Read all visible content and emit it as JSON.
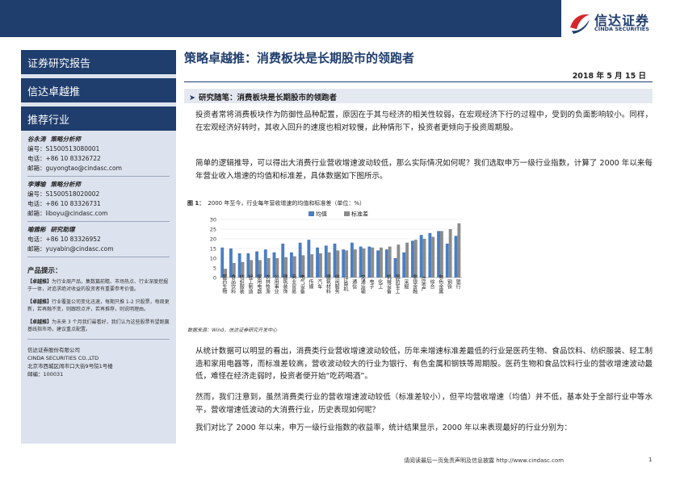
{
  "header": {
    "logo_text": "信达证券",
    "logo_sub": "CINDA SECURITIES"
  },
  "sidebar": {
    "report_type": "证券研究报告",
    "column": "信达卓越推",
    "section": "推荐行业",
    "analysts": [
      {
        "name": "谷永涛",
        "role": "策略分析师",
        "lines": [
          "编号：S1500513080001",
          "电话：+86 10 83326722",
          "邮箱：guyongtao@cindasc.com"
        ]
      },
      {
        "name": "李博瑜",
        "role": "策略分析师",
        "lines": [
          "编号：S1500518020002",
          "电话：+86 10 83326731",
          "邮箱：liboyu@cindasc.com"
        ]
      },
      {
        "name": "喻雅彬",
        "role": "研究助理",
        "lines": [
          "电话：+86 10 83326952",
          "邮箱：yuyabin@cindasc.com"
        ]
      }
    ],
    "tips_title": "产品提示：",
    "tips": [
      {
        "tag": "【卓越推】",
        "text": "为行业周产品，集数篇前瞻、市场热点、行业深度挖掘于一体，对追求绝对收益的投资者有重要参考价值。"
      },
      {
        "tag": "【卓越推】",
        "text": "行业覆盖公司变化迅速，每期只推 1-2 只股票，每周更新，若再融不变，则跟踪点评，若再推荐，则说明理由。"
      },
      {
        "tag": "【卓越推】",
        "text": "为未来 3 个月我们最看好，我们认为这些股票有望跑赢基线指市场，建议重点配置。"
      }
    ],
    "company_lines": [
      "信达证券股份有限公司",
      "CINDA SECURITIES CO.,LTD",
      "北京市西城区闹市口大街9号院1号楼",
      "邮编：100031"
    ]
  },
  "main": {
    "title": "策略卓越推：消费板块是长期股市的领跑者",
    "date": "2018 年 5 月 15 日",
    "section_head": "研究随笔：消费板块是长期股市的领跑者",
    "para1": "投资者常将消费板块作为防御性品种配置，原因在于其与经济的相关性较弱，在宏观经济下行的过程中，受到的负面影响较小。同样，在宏观经济好转时，其收入回升的速度也相对较慢，此种情形下，投资者更倾向于投资周期股。",
    "para2": "简单的逻辑推导，可以得出大消费行业营收增速波动较低，那么实际情况如何呢？我们选取申万一级行业指数，计算了 2000 年以来每年营业收入增速的均值和标准差，具体数据如下图所示。",
    "para3": "从统计数据可以明显的看出，消费类行业营收增速波动较低，历年来增速标准差最低的行业是医药生物、食品饮料、纺织服装、轻工制造和家用电器等，而标准差较高，营收波动较大的行业为银行、有色金属和钢铁等周期股。医药生物和食品饮料行业的营收增速波动最低，难怪在经济走弱时，投资者便开始“吃药喝酒”。",
    "para4": "然而，我们注意到，虽然消费类行业的营收增速波动较低（标准差较小），但平均营收增速（均值）并不低，基本处于全部行业中等水平，营收增速低波动的大消费行业，历史表现如何呢？",
    "para5": "我们对比了 2000 年以来，申万一级行业指数的收益率，统计结果显示，2000 年以来表现最好的行业分别为："
  },
  "chart": {
    "caption_label": "图 1：",
    "caption_text": "2000 年至今，行业每年营收增速的均值和标准差（单位：%）",
    "source": "数据来源：Wind，信达证券研究开发中心"
  },
  "chart_data": {
    "type": "bar",
    "categories": [
      "医药生物",
      "食品饮料",
      "纺织服装",
      "轻工制造",
      "家用电器",
      "农林牧渔",
      "公用事业",
      "建筑装饰",
      "商业贸易",
      "电气设备",
      "传媒",
      "汽车",
      "建筑材料",
      "休闲服务",
      "计算机",
      "通信",
      "交通运输",
      "电子",
      "化工",
      "机械设备",
      "国防军工",
      "采掘",
      "非银金融",
      "房地产",
      "综合",
      "有色金属",
      "钢铁",
      "银行"
    ],
    "category_labels": [
      "医药生物",
      "食品饮料",
      "纺织服装",
      "轻工制造",
      "家用电器",
      "农林牧渔",
      "公用事业",
      "建筑装饰",
      "商业贸易",
      "电气设备",
      "传媒",
      "汽车",
      "建筑材料",
      "休闲服务",
      "计算机",
      "通信",
      "交通运输",
      "电子",
      "化工",
      "机械设备",
      "国防军工",
      "采掘",
      "非银金融",
      "房地产",
      "综合",
      "有色金属",
      "钢铁",
      "银行"
    ],
    "series": [
      {
        "name": "均值",
        "color": "#4a7ec2",
        "values": [
          15.5,
          15,
          12.5,
          12.5,
          13.5,
          14.5,
          13,
          17.5,
          13,
          18,
          19.5,
          15.5,
          16.5,
          17.5,
          14.5,
          18,
          16,
          16,
          14,
          14.5,
          10,
          13,
          19,
          22,
          23,
          24,
          17.5,
          21.5
        ]
      },
      {
        "name": "标准差",
        "color": "#8c8c8c",
        "values": [
          4.5,
          7.5,
          8,
          9,
          9,
          10,
          10,
          10.5,
          11,
          11.5,
          12,
          12.5,
          13,
          14,
          14,
          14.5,
          15,
          15.5,
          15.5,
          16,
          17,
          18,
          19.5,
          20,
          21,
          24,
          25,
          28
        ]
      }
    ],
    "ylim": [
      0,
      30
    ],
    "yticks": [
      0,
      5,
      10,
      15,
      20,
      25,
      30
    ],
    "legend_position": "top-center",
    "grid": true
  },
  "footer": {
    "disclaimer": "请阅读最后一页免责声明及信息披露 http://www.cindasc.com",
    "page": "1"
  }
}
